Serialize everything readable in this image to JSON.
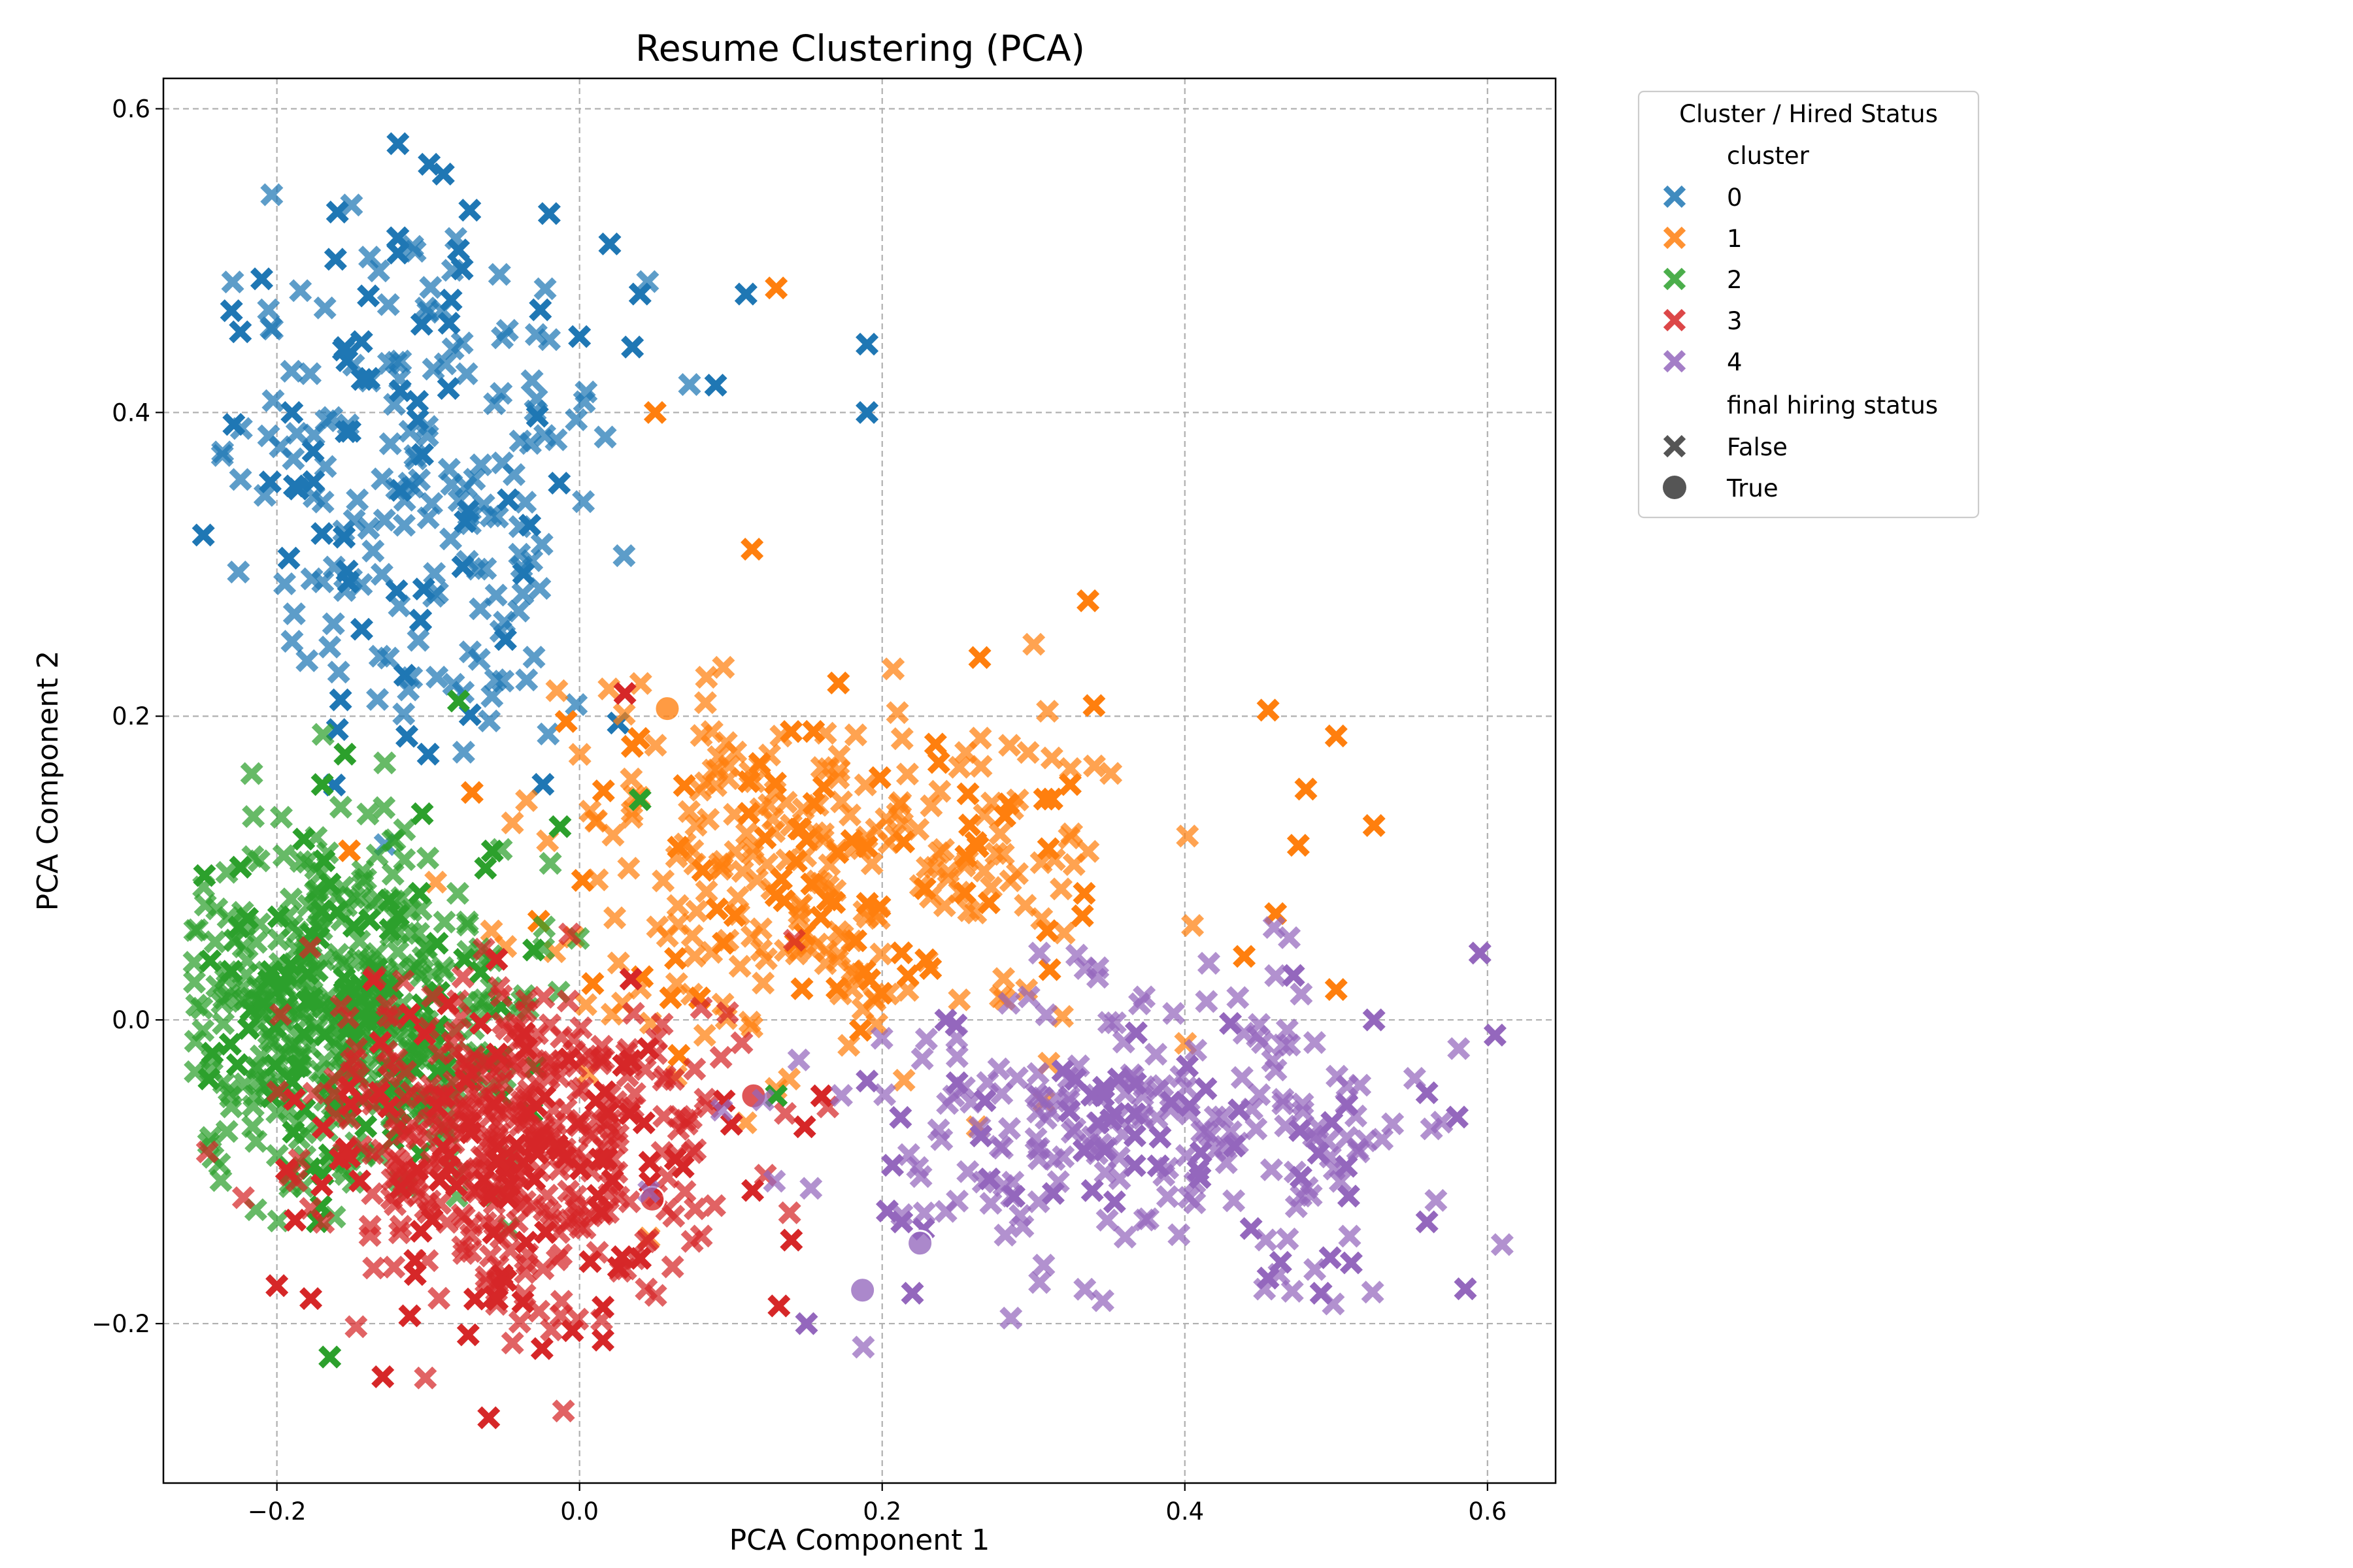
{
  "chart_data": {
    "type": "scatter",
    "title": "Resume Clustering (PCA)",
    "xlabel": "PCA Component 1",
    "ylabel": "PCA Component 2",
    "xlim": [
      -0.275,
      0.645
    ],
    "ylim": [
      -0.305,
      0.62
    ],
    "xticks": [
      -0.2,
      0.0,
      0.2,
      0.4,
      0.6
    ],
    "yticks": [
      -0.2,
      0.0,
      0.2,
      0.4,
      0.6
    ],
    "xtick_labels": [
      "−0.2",
      "0.0",
      "0.2",
      "0.4",
      "0.6"
    ],
    "ytick_labels": [
      "−0.2",
      "0.0",
      "0.2",
      "0.4",
      "0.6"
    ],
    "grid": true,
    "legend": {
      "placement": "outside-upper-right",
      "title": "Cluster / Hired Status",
      "hue_title": "cluster",
      "style_title": "final hiring status",
      "hue_entries": [
        "0",
        "1",
        "2",
        "3",
        "4"
      ],
      "style_entries": [
        {
          "label": "False",
          "marker": "x"
        },
        {
          "label": "True",
          "marker": "circle"
        }
      ]
    },
    "colors": {
      "0": "#1f77b4",
      "1": "#ff7f0e",
      "2": "#2ca02c",
      "3": "#d62728",
      "4": "#9467bd",
      "legend_marker": "#555555"
    },
    "series": [
      {
        "name": "0",
        "center": [
          -0.11,
          0.35
        ],
        "spread": [
          0.065,
          0.09
        ],
        "n_not_hired": 230,
        "x": [
          -0.12,
          -0.09,
          -0.12,
          -0.12,
          -0.19,
          -0.21,
          -0.23,
          -0.16,
          -0.02,
          0.02,
          -0.08,
          0.11,
          0.19,
          0.19,
          0.09,
          0.04,
          -0.1,
          0.0
        ],
        "y": [
          0.577,
          0.557,
          0.515,
          0.505,
          0.4,
          0.488,
          0.467,
          0.532,
          0.531,
          0.511,
          0.507,
          0.478,
          0.445,
          0.4,
          0.418,
          0.478,
          0.175,
          0.45
        ],
        "hired_x": [],
        "hired_y": []
      },
      {
        "name": "1",
        "center": [
          0.16,
          0.1
        ],
        "spread": [
          0.095,
          0.065
        ],
        "n_not_hired": 330,
        "x": [
          0.13,
          0.336,
          0.34,
          0.455,
          0.5,
          0.525,
          0.475,
          0.48,
          0.46,
          0.5,
          0.05,
          0.114
        ],
        "y": [
          0.482,
          0.276,
          0.207,
          0.204,
          0.187,
          0.128,
          0.115,
          0.152,
          0.07,
          0.02,
          0.4,
          0.31
        ],
        "hired_x": [
          0.058
        ],
        "hired_y": [
          0.205
        ]
      },
      {
        "name": "2",
        "center": [
          -0.15,
          0.0
        ],
        "spread": [
          0.058,
          0.06
        ],
        "n_not_hired": 520,
        "x": [
          -0.165,
          -0.23,
          -0.155,
          -0.17,
          0.04,
          -0.08,
          0.13
        ],
        "y": [
          -0.222,
          0.032,
          0.175,
          0.155,
          0.145,
          0.21,
          -0.05
        ],
        "hired_x": [],
        "hired_y": []
      },
      {
        "name": "3",
        "center": [
          -0.05,
          -0.08
        ],
        "spread": [
          0.07,
          0.058
        ],
        "n_not_hired": 480,
        "x": [
          -0.06,
          -0.2,
          -0.13,
          0.14,
          0.16,
          0.03
        ],
        "y": [
          -0.262,
          -0.175,
          -0.235,
          -0.145,
          -0.05,
          0.215
        ],
        "hired_x": [
          0.115,
          0.048
        ],
        "hired_y": [
          -0.05,
          -0.118
        ]
      },
      {
        "name": "4",
        "center": [
          0.37,
          -0.07
        ],
        "spread": [
          0.1,
          0.048
        ],
        "n_not_hired": 260,
        "x": [
          0.605,
          0.595,
          0.58,
          0.56,
          0.56,
          0.49,
          0.51,
          0.15,
          0.22,
          0.525,
          0.455
        ],
        "y": [
          -0.01,
          0.044,
          -0.064,
          -0.048,
          -0.133,
          -0.18,
          -0.16,
          -0.2,
          -0.18,
          0.0,
          -0.17
        ],
        "hired_x": [
          0.187,
          0.225
        ],
        "hired_y": [
          -0.178,
          -0.147
        ]
      }
    ]
  }
}
